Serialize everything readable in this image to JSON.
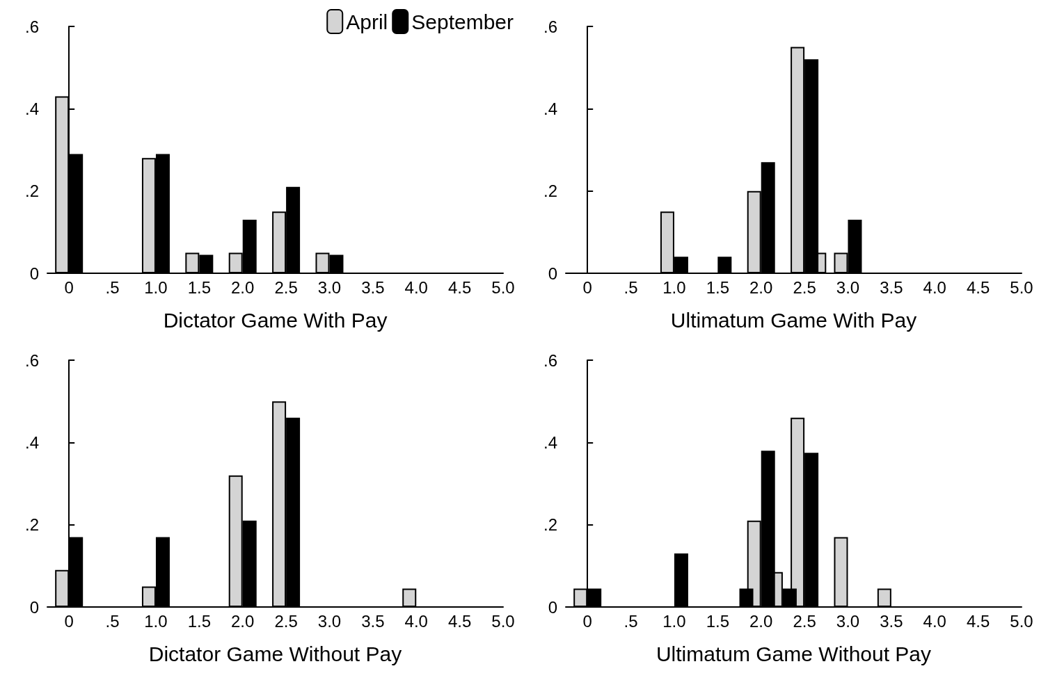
{
  "chart_data": [
    {
      "type": "bar",
      "xlabel": "Dictator Game With Pay",
      "legend": "top right",
      "xlim": [
        -0.25,
        5.0
      ],
      "ylim": [
        0,
        0.6
      ],
      "xticks": [
        0,
        {
          "value": 0.5,
          "label": ".5"
        },
        {
          "value": 1,
          "label": "1.0"
        },
        1.5,
        {
          "value": 2,
          "label": "2.0"
        },
        2.5,
        {
          "value": 3,
          "label": "3.0"
        },
        3.5,
        {
          "value": 4,
          "label": "4.0"
        },
        4.5,
        {
          "value": 5,
          "label": "5.0"
        }
      ],
      "yticks": [
        {
          "value": 0,
          "label": "0"
        },
        {
          "value": 0.2,
          "label": ".2"
        },
        {
          "value": 0.4,
          "label": ".4"
        },
        {
          "value": 0.6,
          "label": ".6"
        }
      ],
      "series": [
        {
          "name": "April",
          "color": "#d4d4d4",
          "x": [
            0,
            1,
            1.5,
            2,
            2.5,
            3
          ],
          "values": [
            0.43,
            0.28,
            0.05,
            0.05,
            0.15,
            0.05
          ]
        },
        {
          "name": "September",
          "color": "#000000",
          "x": [
            0,
            1,
            1.5,
            2,
            2.5,
            3
          ],
          "values": [
            0.29,
            0.29,
            0.045,
            0.13,
            0.21,
            0.045
          ]
        }
      ]
    },
    {
      "type": "bar",
      "xlabel": "Ultimatum Game With Pay",
      "xlim": [
        -0.25,
        5.0
      ],
      "ylim": [
        0,
        0.6
      ],
      "xticks": [
        0,
        {
          "value": 0.5,
          "label": ".5"
        },
        {
          "value": 1,
          "label": "1.0"
        },
        1.5,
        {
          "value": 2,
          "label": "2.0"
        },
        2.5,
        {
          "value": 3,
          "label": "3.0"
        },
        3.5,
        {
          "value": 4,
          "label": "4.0"
        },
        4.5,
        {
          "value": 5,
          "label": "5.0"
        }
      ],
      "yticks": [
        {
          "value": 0,
          "label": "0"
        },
        {
          "value": 0.2,
          "label": ".2"
        },
        {
          "value": 0.4,
          "label": ".4"
        },
        {
          "value": 0.6,
          "label": ".6"
        }
      ],
      "series": [
        {
          "color": "#d4d4d4",
          "x": [
            1,
            2,
            2.5,
            2.75,
            3
          ],
          "values": [
            0.15,
            0.2,
            0.55,
            0.05,
            0.05
          ]
        },
        {
          "color": "#000000",
          "x": [
            1,
            1.5,
            2,
            2.5,
            3
          ],
          "values": [
            0.04,
            0.04,
            0.27,
            0.52,
            0.13
          ]
        }
      ]
    },
    {
      "type": "bar",
      "xlabel": "Dictator Game Without Pay",
      "xlim": [
        -0.25,
        5.0
      ],
      "ylim": [
        0,
        0.6
      ],
      "xticks": [
        0,
        {
          "value": 0.5,
          "label": ".5"
        },
        {
          "value": 1,
          "label": "1.0"
        },
        1.5,
        {
          "value": 2,
          "label": "2.0"
        },
        2.5,
        {
          "value": 3,
          "label": "3.0"
        },
        3.5,
        {
          "value": 4,
          "label": "4.0"
        },
        4.5,
        {
          "value": 5,
          "label": "5.0"
        }
      ],
      "yticks": [
        {
          "value": 0,
          "label": "0"
        },
        {
          "value": 0.2,
          "label": ".2"
        },
        {
          "value": 0.4,
          "label": ".4"
        },
        {
          "value": 0.6,
          "label": ".6"
        }
      ],
      "series": [
        {
          "color": "#d4d4d4",
          "x": [
            0,
            1,
            2,
            2.5,
            4
          ],
          "values": [
            0.09,
            0.05,
            0.32,
            0.5,
            0.045
          ]
        },
        {
          "color": "#000000",
          "x": [
            0,
            1,
            2,
            2.5
          ],
          "values": [
            0.17,
            0.17,
            0.21,
            0.46
          ]
        }
      ]
    },
    {
      "type": "bar",
      "xlabel": "Ultimatum Game Without Pay",
      "xlim": [
        -0.25,
        5.0
      ],
      "ylim": [
        0,
        0.6
      ],
      "xticks": [
        0,
        {
          "value": 0.5,
          "label": ".5"
        },
        {
          "value": 1,
          "label": "1.0"
        },
        1.5,
        {
          "value": 2,
          "label": "2.0"
        },
        2.5,
        {
          "value": 3,
          "label": "3.0"
        },
        3.5,
        {
          "value": 4,
          "label": "4.0"
        },
        4.5,
        {
          "value": 5,
          "label": "5.0"
        }
      ],
      "yticks": [
        {
          "value": 0,
          "label": "0"
        },
        {
          "value": 0.2,
          "label": ".2"
        },
        {
          "value": 0.4,
          "label": ".4"
        },
        {
          "value": 0.6,
          "label": ".6"
        }
      ],
      "series": [
        {
          "color": "#d4d4d4",
          "x": [
            0,
            2,
            2.25,
            2.5,
            3,
            3.5
          ],
          "values": [
            0.045,
            0.21,
            0.085,
            0.46,
            0.17,
            0.045
          ]
        },
        {
          "color": "#000000",
          "x": [
            0,
            1,
            1.75,
            2,
            2.25,
            2.5
          ],
          "values": [
            0.045,
            0.13,
            0.045,
            0.38,
            0.045,
            0.375
          ]
        }
      ]
    }
  ]
}
